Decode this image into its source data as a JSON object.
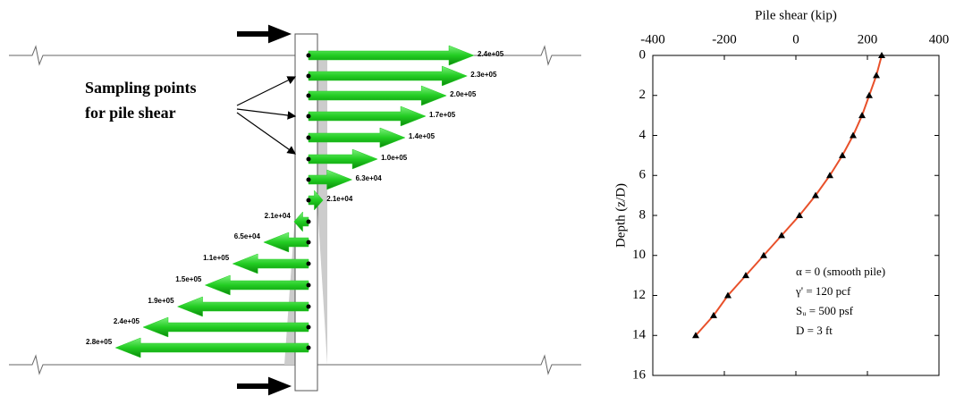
{
  "chart_data": [
    {
      "type": "arrows",
      "values": [
        240000,
        230000,
        200000,
        170000,
        140000,
        100000,
        63000,
        21000,
        21000,
        65000,
        110000,
        150000,
        190000,
        240000,
        280000
      ],
      "value_labels": [
        "2.4e+05",
        "2.3e+05",
        "2.0e+05",
        "1.7e+05",
        "1.4e+05",
        "1.0e+05",
        "6.3e+04",
        "2.1e+04",
        "2.1e+04",
        "6.5e+04",
        "1.1e+05",
        "1.5e+05",
        "1.9e+05",
        "2.4e+05",
        "2.8e+05"
      ],
      "directions": [
        "right",
        "right",
        "right",
        "right",
        "right",
        "right",
        "right",
        "right",
        "left",
        "left",
        "left",
        "left",
        "left",
        "left",
        "left"
      ],
      "color": "#22cc22",
      "annotation": [
        "Sampling points",
        "for pile shear"
      ]
    },
    {
      "type": "line",
      "title": "Pile shear (kip)",
      "ylabel": "Depth (z/D)",
      "x": [
        240,
        225,
        205,
        185,
        160,
        130,
        95,
        55,
        10,
        -40,
        -90,
        -140,
        -190,
        -230,
        -280
      ],
      "y": [
        0,
        1,
        2,
        3,
        4,
        5,
        6,
        7,
        8,
        9,
        10,
        11,
        12,
        13,
        14
      ],
      "color": "#e8502a",
      "xlim": [
        -400,
        400
      ],
      "xticks": [
        -400,
        -200,
        0,
        200,
        400
      ],
      "ylim": [
        16,
        0
      ],
      "yticks": [
        0,
        2,
        4,
        6,
        8,
        10,
        12,
        14,
        16
      ],
      "annotations": [
        "α = 0 (smooth pile)",
        "γ' = 120 pcf",
        "Sᵤ = 500 psf",
        "D = 3 ft"
      ]
    }
  ]
}
